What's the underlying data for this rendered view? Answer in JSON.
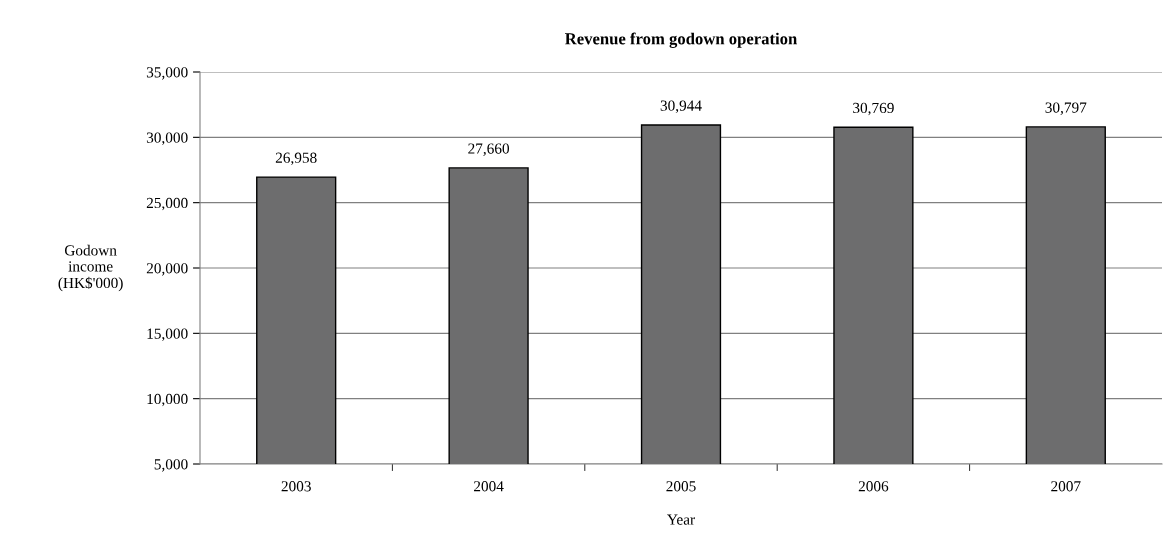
{
  "chart_data": {
    "type": "bar",
    "title": "Revenue from godown operation",
    "xlabel": "Year",
    "ylabel": "Godown\nincome\n(HK$'000)",
    "categories": [
      "2003",
      "2004",
      "2005",
      "2006",
      "2007"
    ],
    "values": [
      26958,
      27660,
      30944,
      30769,
      30797
    ],
    "value_labels": [
      "26,958",
      "27,660",
      "30,944",
      "30,769",
      "30,797"
    ],
    "color": "#6d6d6e",
    "ylim": [
      5000,
      35000
    ],
    "yticks": [
      {
        "value": 5000,
        "label": "5,000"
      },
      {
        "value": 10000,
        "label": "10,000"
      },
      {
        "value": 15000,
        "label": "15,000"
      },
      {
        "value": 20000,
        "label": "20,000"
      },
      {
        "value": 25000,
        "label": "25,000"
      },
      {
        "value": 30000,
        "label": "30,000"
      },
      {
        "value": 35000,
        "label": "35,000"
      }
    ],
    "grid": "y",
    "legend": false
  }
}
